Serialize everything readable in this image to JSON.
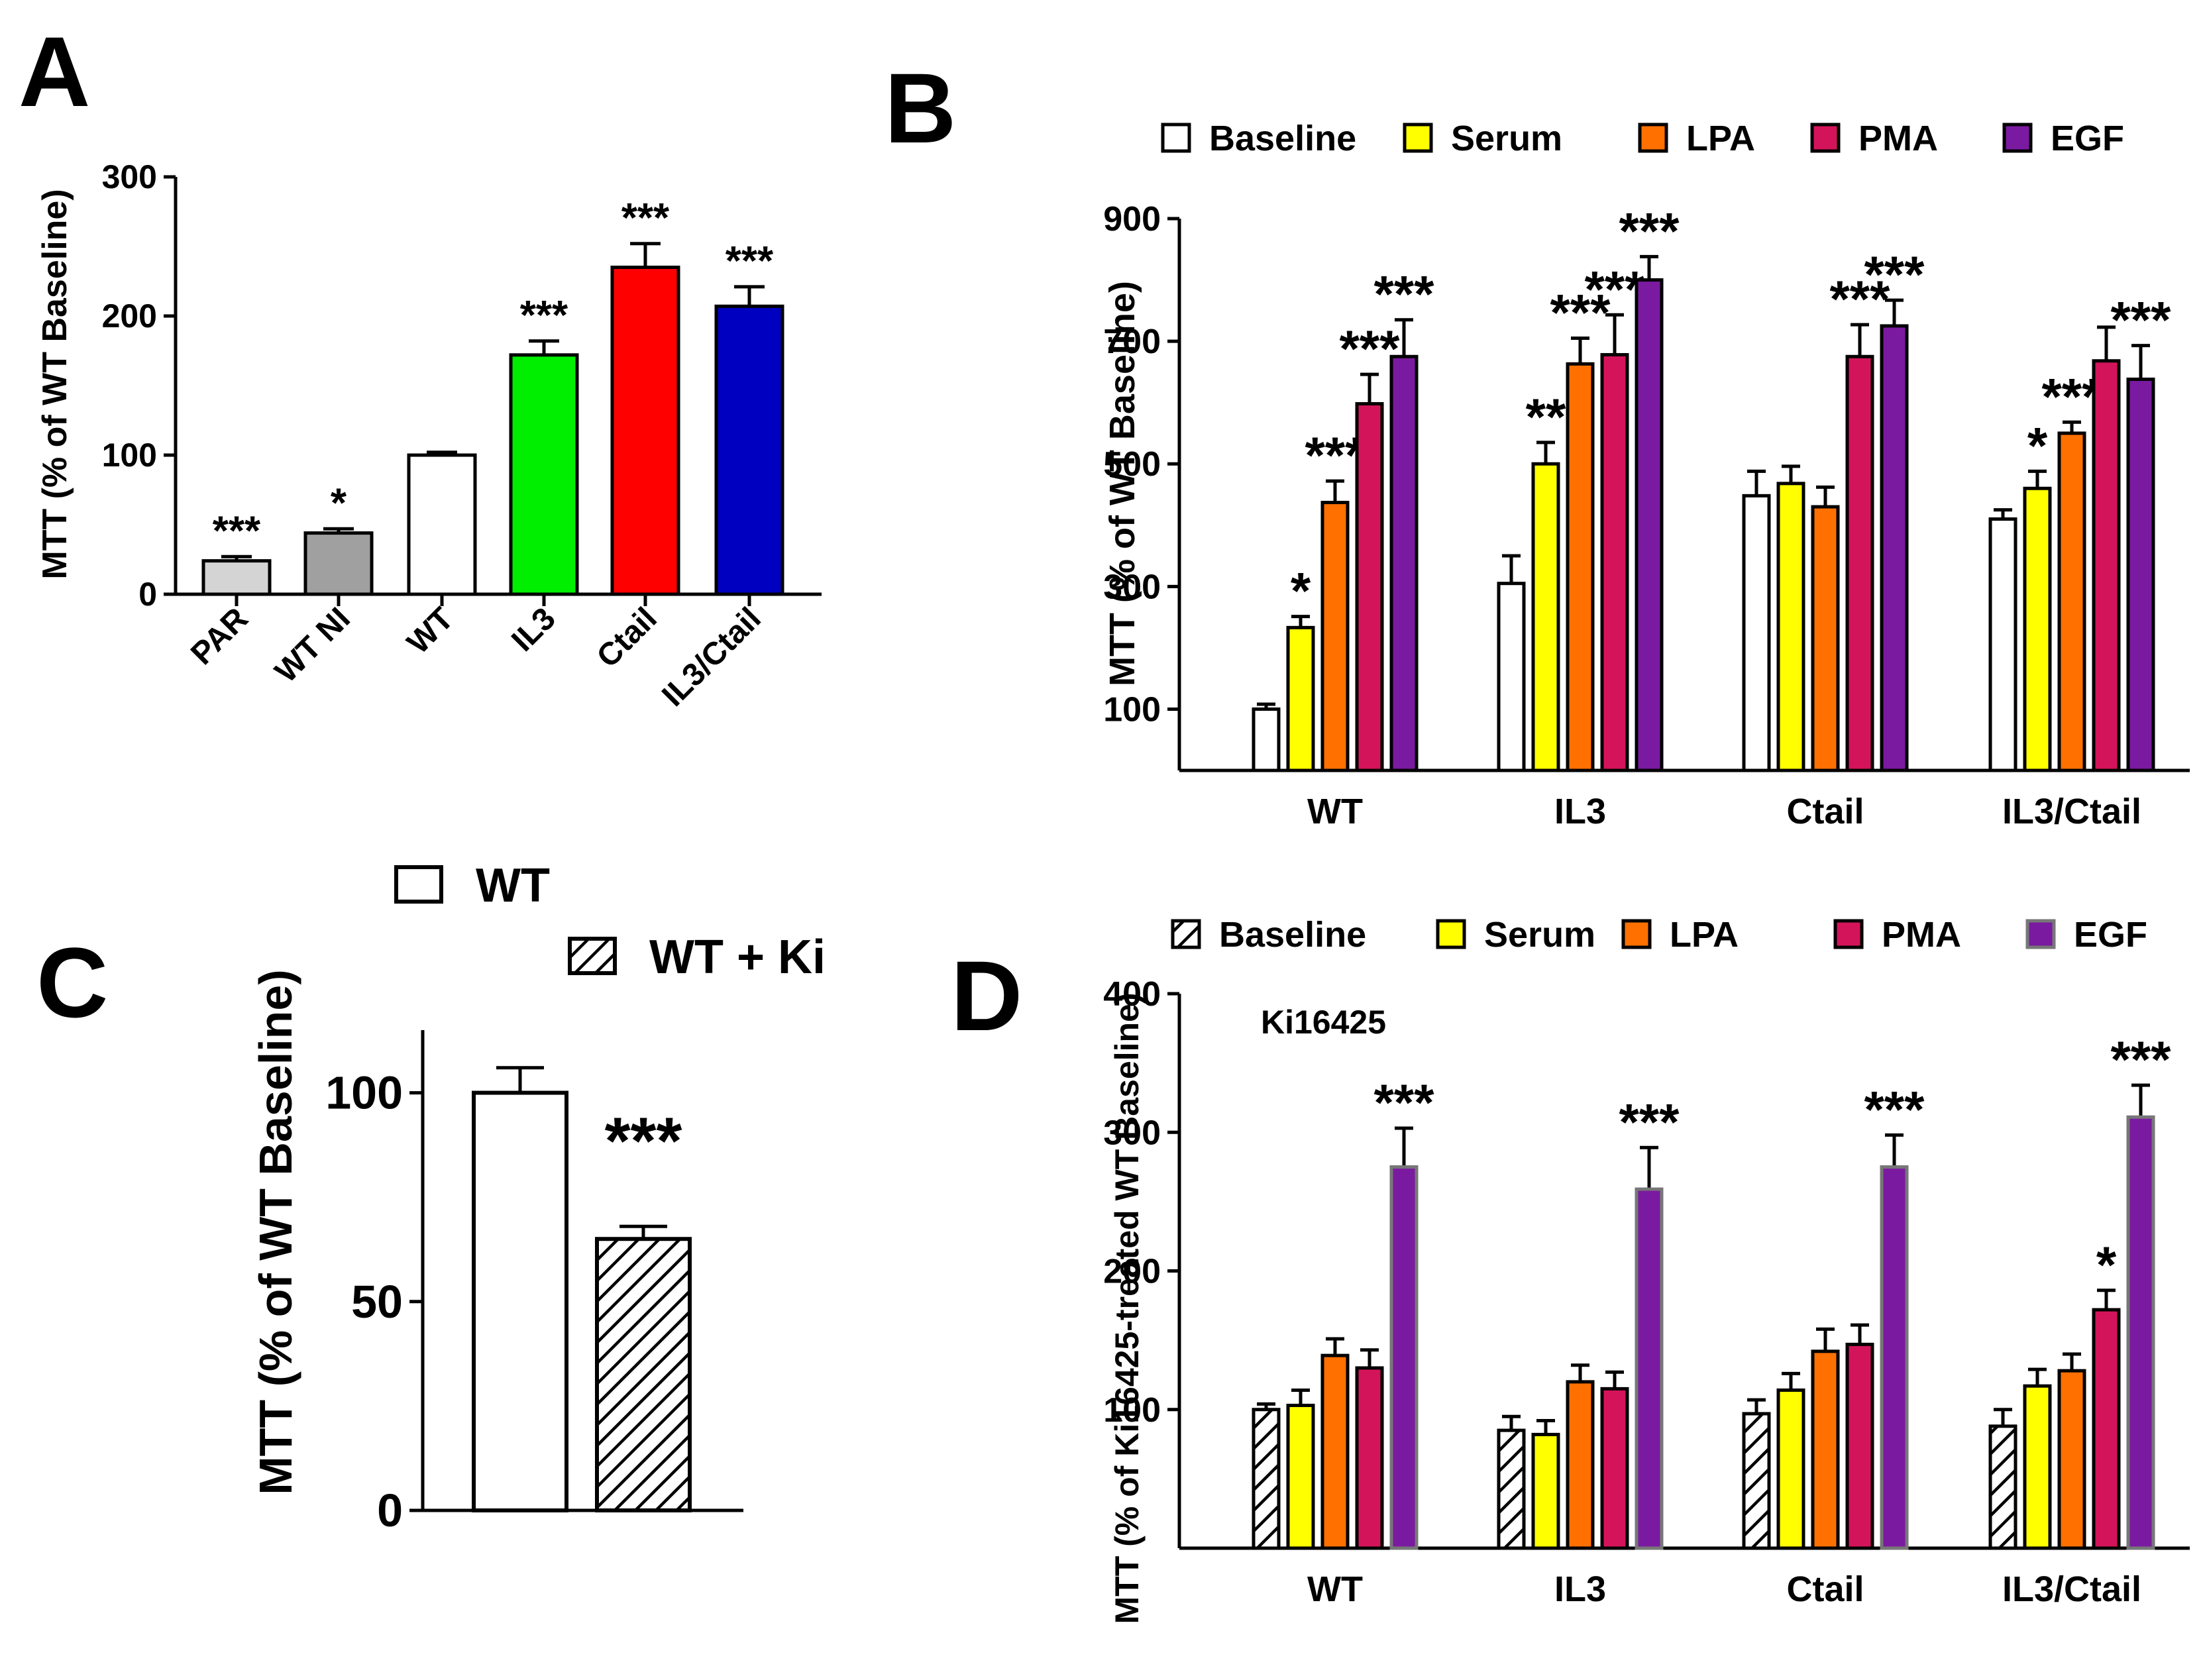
{
  "panel_labels": {
    "a": "A",
    "b": "B",
    "c": "C",
    "d": "D"
  },
  "chart_data": [
    {
      "panel": "A",
      "type": "bar",
      "ylabel": "MTT (% of WT Baseline)",
      "ylim": [
        0,
        300
      ],
      "yticks": [
        "0",
        "100",
        "200",
        "300"
      ],
      "categories": [
        "PAR",
        "WT NI",
        "WT",
        "IL3",
        "Ctail",
        "IL3/Ctail"
      ],
      "values": [
        24,
        44,
        100,
        172,
        235,
        207
      ],
      "errors": [
        3,
        3,
        2,
        10,
        17,
        14
      ],
      "colors": [
        "#d4d4d4",
        "#a0a0a0",
        "#ffffff",
        "#00ee00",
        "#ff0000",
        "#0000c0"
      ],
      "significance": [
        "***",
        "*",
        "",
        "***",
        "***",
        "***"
      ]
    },
    {
      "panel": "B",
      "type": "bar",
      "ylabel": "MTT (% of WT Baseline)",
      "ylim": [
        0,
        900
      ],
      "yticks": [
        "100",
        "300",
        "500",
        "700",
        "900"
      ],
      "groups": [
        "WT",
        "IL3",
        "Ctail",
        "IL3/Ctail"
      ],
      "legend": [
        "Baseline",
        "Serum",
        "LPA",
        "PMA",
        "EGF"
      ],
      "colors": [
        "#ffffff",
        "#ffff00",
        "#ff7000",
        "#d4145a",
        "#7a1aa0"
      ],
      "series": [
        {
          "name": "Baseline",
          "values": [
            100,
            305,
            448,
            410
          ],
          "errors": [
            8,
            45,
            40,
            15
          ],
          "sig": [
            "",
            "",
            "",
            ""
          ]
        },
        {
          "name": "Serum",
          "values": [
            233,
            500,
            468,
            460
          ],
          "errors": [
            18,
            35,
            28,
            28
          ],
          "sig": [
            "*",
            "**",
            "",
            "*"
          ]
        },
        {
          "name": "LPA",
          "values": [
            437,
            663,
            430,
            550
          ],
          "errors": [
            35,
            42,
            32,
            18
          ],
          "sig": [
            "***",
            "***",
            "",
            "***"
          ]
        },
        {
          "name": "PMA",
          "values": [
            598,
            678,
            675,
            668
          ],
          "errors": [
            48,
            65,
            52,
            55
          ],
          "sig": [
            "***",
            "***",
            "***",
            ""
          ]
        },
        {
          "name": "EGF",
          "values": [
            675,
            800,
            725,
            638
          ],
          "errors": [
            60,
            38,
            42,
            55
          ],
          "sig": [
            "***",
            "***",
            "***",
            "***"
          ]
        }
      ]
    },
    {
      "panel": "C",
      "type": "bar",
      "ylabel": "MTT (% of WT Baseline)",
      "ylim": [
        0,
        100
      ],
      "yticks": [
        "0",
        "50",
        "100"
      ],
      "legend": [
        "WT",
        "WT + Ki"
      ],
      "values": [
        100,
        65
      ],
      "errors": [
        6,
        3
      ],
      "significance": [
        "",
        "***"
      ]
    },
    {
      "panel": "D",
      "type": "bar",
      "annotation": "Ki16425",
      "ylabel": "MTT (% of  Ki16425-treated WT Baseline)",
      "ylim": [
        0,
        400
      ],
      "yticks": [
        "100",
        "200",
        "300",
        "400"
      ],
      "groups": [
        "WT",
        "IL3",
        "Ctail",
        "IL3/Ctail"
      ],
      "legend": [
        "Baseline",
        "Serum",
        "LPA",
        "PMA",
        "EGF"
      ],
      "colors": [
        "#ffffff",
        "#ffff00",
        "#ff7000",
        "#d4145a",
        "#7a1aa0"
      ],
      "series": [
        {
          "name": "Baseline",
          "values": [
            100,
            85,
            97,
            88
          ],
          "errors": [
            4,
            10,
            10,
            12
          ],
          "sig": [
            "",
            "",
            "",
            ""
          ]
        },
        {
          "name": "Serum",
          "values": [
            103,
            82,
            114,
            117
          ],
          "errors": [
            11,
            10,
            12,
            12
          ],
          "sig": [
            "",
            "",
            "",
            ""
          ]
        },
        {
          "name": "LPA",
          "values": [
            139,
            120,
            142,
            128
          ],
          "errors": [
            12,
            12,
            16,
            12
          ],
          "sig": [
            "",
            "",
            "",
            ""
          ]
        },
        {
          "name": "PMA",
          "values": [
            130,
            115,
            147,
            172
          ],
          "errors": [
            13,
            12,
            14,
            14
          ],
          "sig": [
            "",
            "",
            "",
            "*"
          ]
        },
        {
          "name": "EGF",
          "values": [
            275,
            259,
            275,
            311
          ],
          "errors": [
            28,
            30,
            23,
            23
          ],
          "sig": [
            "***",
            "***",
            "***",
            "***"
          ]
        }
      ]
    }
  ]
}
